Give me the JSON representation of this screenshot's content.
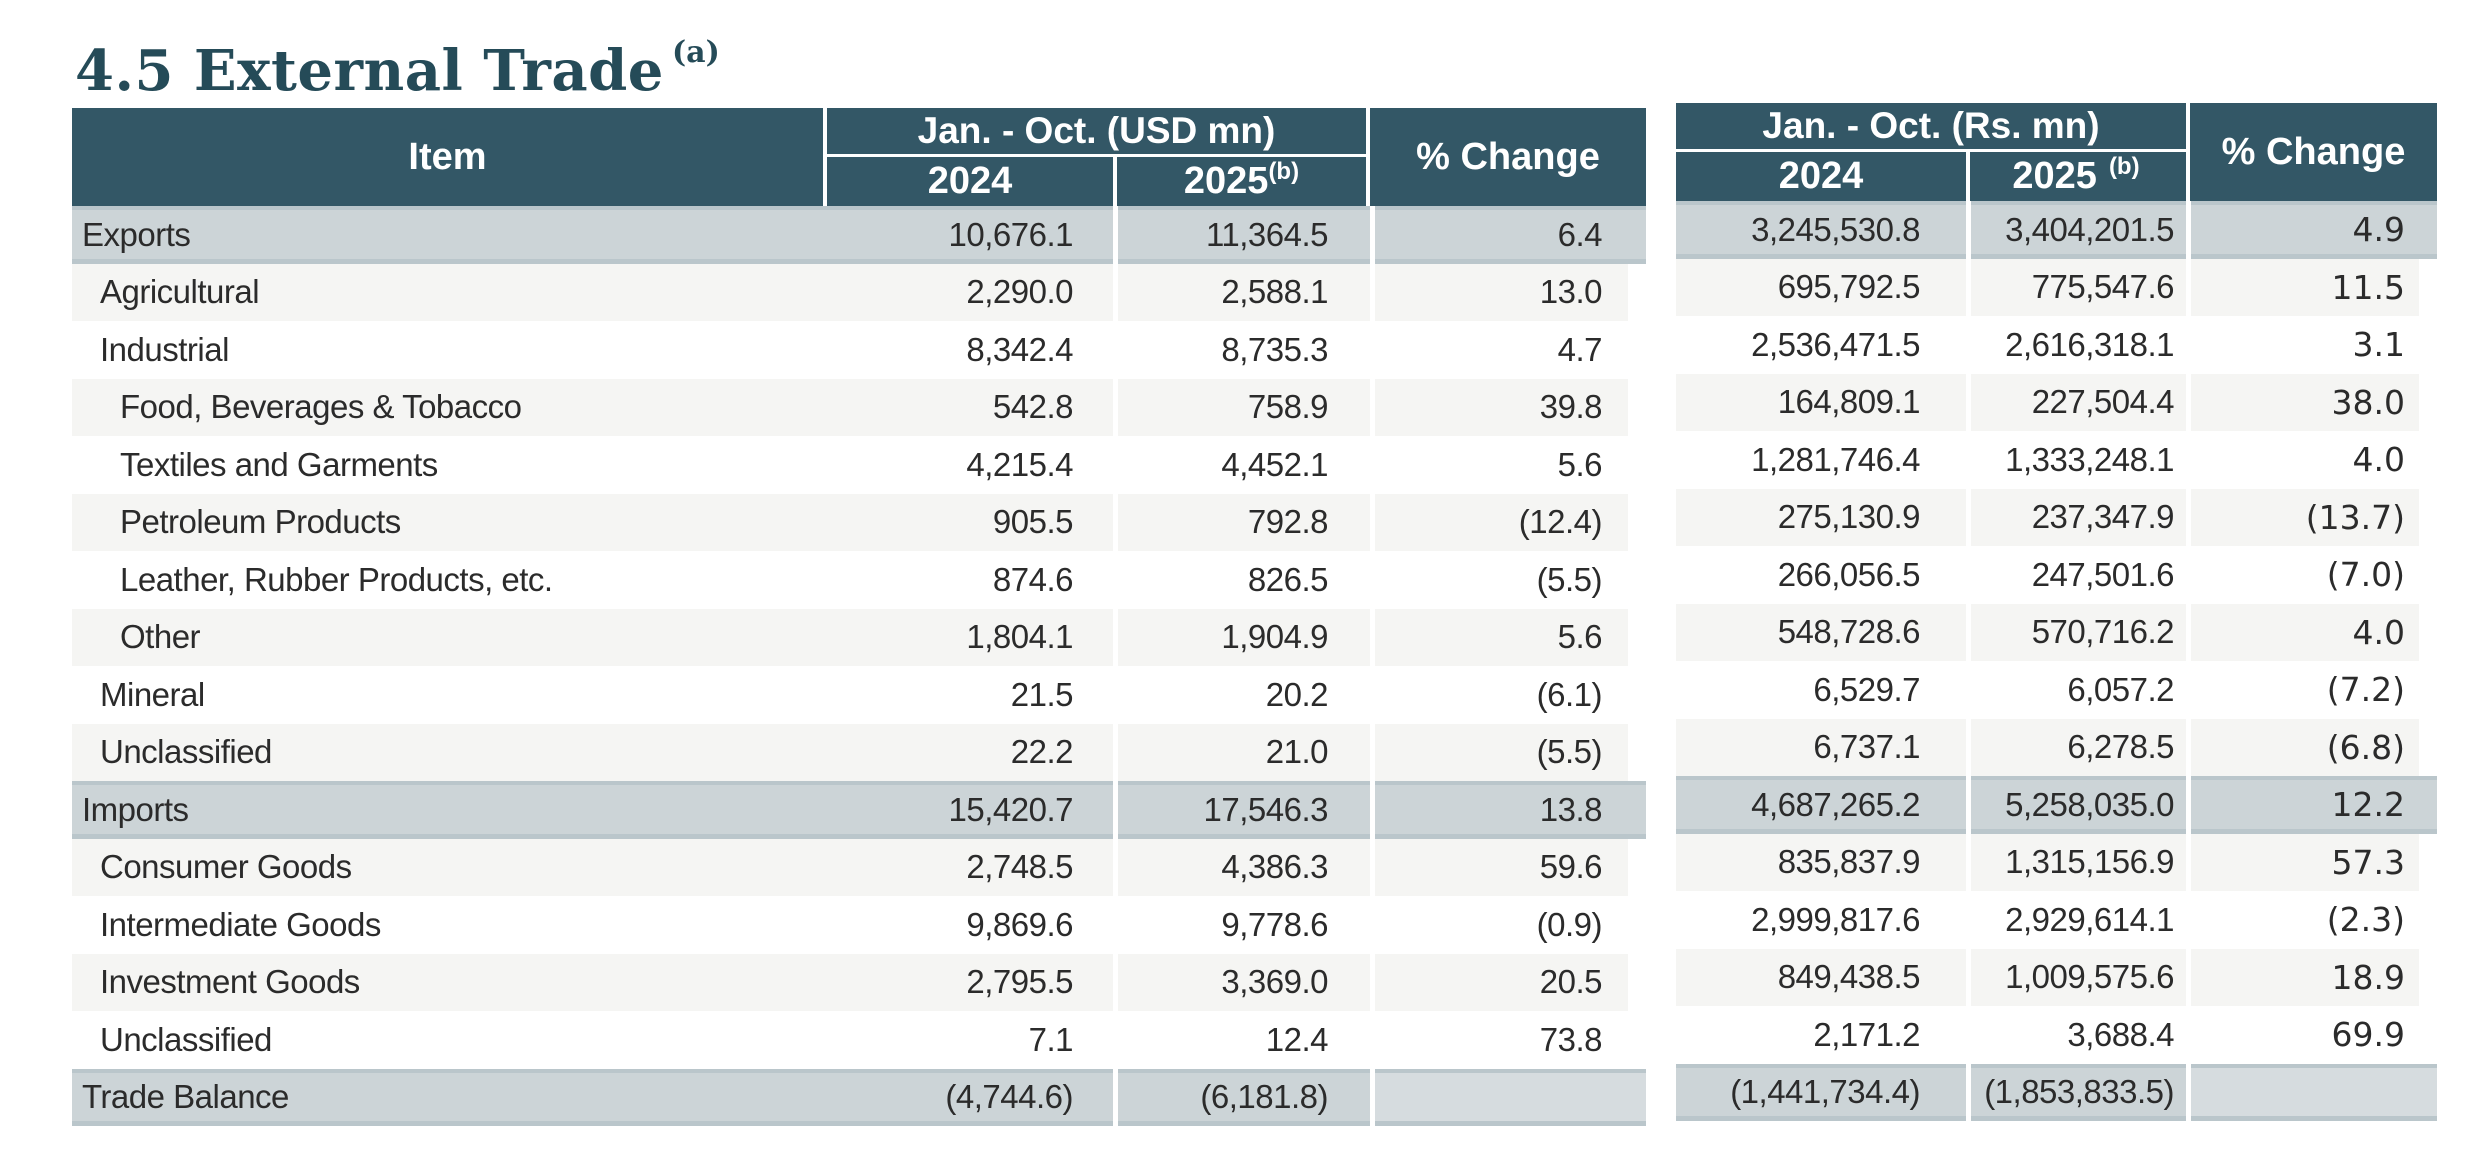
{
  "title": {
    "text": "4.5 External Trade",
    "superscript": "(a)"
  },
  "table": {
    "header": {
      "item": "Item",
      "usd_group": "Jan. - Oct. (USD mn)",
      "rs_group": "Jan. - Oct. (Rs. mn)",
      "col_2024": "2024",
      "col_2025": "2025",
      "note_b": "(b)",
      "pct_change": "% Change"
    },
    "rows": [
      {
        "item": "Exports",
        "indent": 0,
        "style": "total",
        "usd_2024": "10,676.1",
        "usd_2025": "11,364.5",
        "usd_pct": "6.4",
        "rs_2024": "3,245,530.8",
        "rs_2025": "3,404,201.5",
        "rs_pct": "4.9"
      },
      {
        "item": "Agricultural",
        "indent": 1,
        "style": "stripe",
        "usd_2024": "2,290.0",
        "usd_2025": "2,588.1",
        "usd_pct": "13.0",
        "rs_2024": "695,792.5",
        "rs_2025": "775,547.6",
        "rs_pct": "11.5"
      },
      {
        "item": "Industrial",
        "indent": 1,
        "style": "plain",
        "usd_2024": "8,342.4",
        "usd_2025": "8,735.3",
        "usd_pct": "4.7",
        "rs_2024": "2,536,471.5",
        "rs_2025": "2,616,318.1",
        "rs_pct": "3.1"
      },
      {
        "item": "Food, Beverages & Tobacco",
        "indent": 2,
        "style": "stripe",
        "usd_2024": "542.8",
        "usd_2025": "758.9",
        "usd_pct": "39.8",
        "rs_2024": "164,809.1",
        "rs_2025": "227,504.4",
        "rs_pct": "38.0"
      },
      {
        "item": "Textiles and Garments",
        "indent": 2,
        "style": "plain",
        "usd_2024": "4,215.4",
        "usd_2025": "4,452.1",
        "usd_pct": "5.6",
        "rs_2024": "1,281,746.4",
        "rs_2025": "1,333,248.1",
        "rs_pct": "4.0"
      },
      {
        "item": "Petroleum Products",
        "indent": 2,
        "style": "stripe",
        "usd_2024": "905.5",
        "usd_2025": "792.8",
        "usd_pct": "(12.4)",
        "rs_2024": "275,130.9",
        "rs_2025": "237,347.9",
        "rs_pct": "(13.7)"
      },
      {
        "item": "Leather, Rubber Products, etc.",
        "indent": 2,
        "style": "plain",
        "usd_2024": "874.6",
        "usd_2025": "826.5",
        "usd_pct": "(5.5)",
        "rs_2024": "266,056.5",
        "rs_2025": "247,501.6",
        "rs_pct": "(7.0)"
      },
      {
        "item": "Other",
        "indent": 2,
        "style": "stripe",
        "usd_2024": "1,804.1",
        "usd_2025": "1,904.9",
        "usd_pct": "5.6",
        "rs_2024": "548,728.6",
        "rs_2025": "570,716.2",
        "rs_pct": "4.0"
      },
      {
        "item": "Mineral",
        "indent": 1,
        "style": "plain",
        "usd_2024": "21.5",
        "usd_2025": "20.2",
        "usd_pct": "(6.1)",
        "rs_2024": "6,529.7",
        "rs_2025": "6,057.2",
        "rs_pct": "(7.2)"
      },
      {
        "item": "Unclassified",
        "indent": 1,
        "style": "stripe",
        "usd_2024": "22.2",
        "usd_2025": "21.0",
        "usd_pct": "(5.5)",
        "rs_2024": "6,737.1",
        "rs_2025": "6,278.5",
        "rs_pct": "(6.8)"
      },
      {
        "item": "Imports",
        "indent": 0,
        "style": "total",
        "usd_2024": "15,420.7",
        "usd_2025": "17,546.3",
        "usd_pct": "13.8",
        "rs_2024": "4,687,265.2",
        "rs_2025": "5,258,035.0",
        "rs_pct": "12.2"
      },
      {
        "item": "Consumer Goods",
        "indent": 1,
        "style": "stripe",
        "usd_2024": "2,748.5",
        "usd_2025": "4,386.3",
        "usd_pct": "59.6",
        "rs_2024": "835,837.9",
        "rs_2025": "1,315,156.9",
        "rs_pct": "57.3"
      },
      {
        "item": "Intermediate Goods",
        "indent": 1,
        "style": "plain",
        "usd_2024": "9,869.6",
        "usd_2025": "9,778.6",
        "usd_pct": "(0.9)",
        "rs_2024": "2,999,817.6",
        "rs_2025": "2,929,614.1",
        "rs_pct": "(2.3)"
      },
      {
        "item": "Investment Goods",
        "indent": 1,
        "style": "stripe",
        "usd_2024": "2,795.5",
        "usd_2025": "3,369.0",
        "usd_pct": "20.5",
        "rs_2024": "849,438.5",
        "rs_2025": "1,009,575.6",
        "rs_pct": "18.9"
      },
      {
        "item": "Unclassified",
        "indent": 1,
        "style": "plain",
        "usd_2024": "7.1",
        "usd_2025": "12.4",
        "usd_pct": "73.8",
        "rs_2024": "2,171.2",
        "rs_2025": "3,688.4",
        "rs_pct": "69.9"
      },
      {
        "item": "Trade Balance",
        "indent": 0,
        "style": "total",
        "usd_2024": "(4,744.6)",
        "usd_2025": "(6,181.8)",
        "usd_pct": "",
        "rs_2024": "(1,441,734.4)",
        "rs_2025": "(1,853,833.5)",
        "rs_pct": ""
      }
    ]
  },
  "colors": {
    "header_bg": "#335766",
    "title_color": "#254b58",
    "highlight_row": "#ccd4d7",
    "highlight_edge": "#bac6cb",
    "highlight_light": "#d6dcdf",
    "stripe_row": "#f5f5f3",
    "text": "#2b2b2b",
    "header_text": "#ffffff"
  }
}
